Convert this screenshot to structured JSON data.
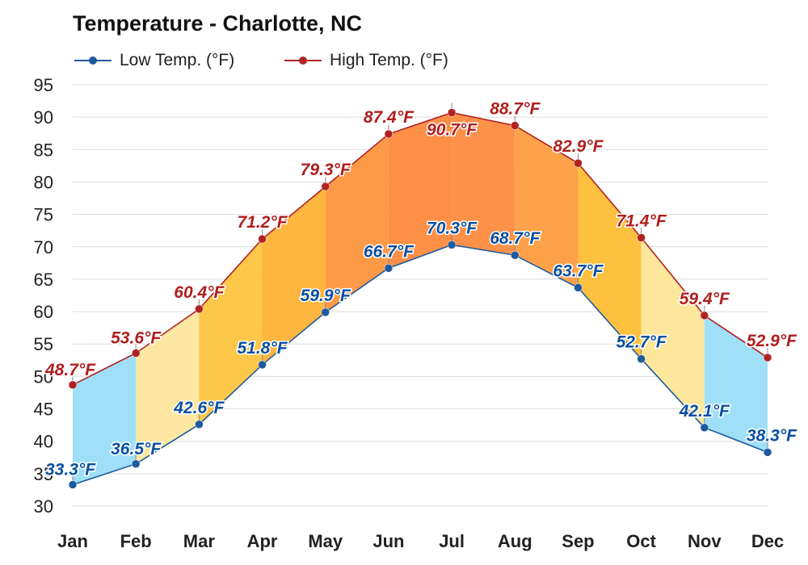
{
  "chart_data": {
    "type": "area",
    "title": "Temperature - Charlotte, NC",
    "categories": [
      "Jan",
      "Feb",
      "Mar",
      "Apr",
      "May",
      "Jun",
      "Jul",
      "Aug",
      "Sep",
      "Oct",
      "Nov",
      "Dec"
    ],
    "ylim": [
      30,
      95
    ],
    "yticks": [
      30,
      35,
      40,
      45,
      50,
      55,
      60,
      65,
      70,
      75,
      80,
      85,
      90,
      95
    ],
    "grid": true,
    "legend_position": "top-left",
    "unit_suffix": "°F",
    "series": [
      {
        "name": "Low Temp. (°F)",
        "color": "#1f5a9e",
        "label_color": "#0a4fa0",
        "values": [
          33.3,
          36.5,
          42.6,
          51.8,
          59.9,
          66.7,
          70.3,
          68.7,
          63.7,
          52.7,
          42.1,
          38.3
        ]
      },
      {
        "name": "High Temp. (°F)",
        "color": "#b22222",
        "label_color": "#b01e1e",
        "values": [
          48.7,
          53.6,
          60.4,
          71.2,
          79.3,
          87.4,
          90.7,
          88.7,
          82.9,
          71.4,
          59.4,
          52.9
        ]
      }
    ],
    "band_colors": [
      "#9fe0f8",
      "#fde7a2",
      "#fdc74a",
      "#fdb63f",
      "#fd9a47",
      "#fd8f46",
      "#fd9149",
      "#fda24a",
      "#fdc13f",
      "#fde79c",
      "#9fe0f8"
    ]
  }
}
